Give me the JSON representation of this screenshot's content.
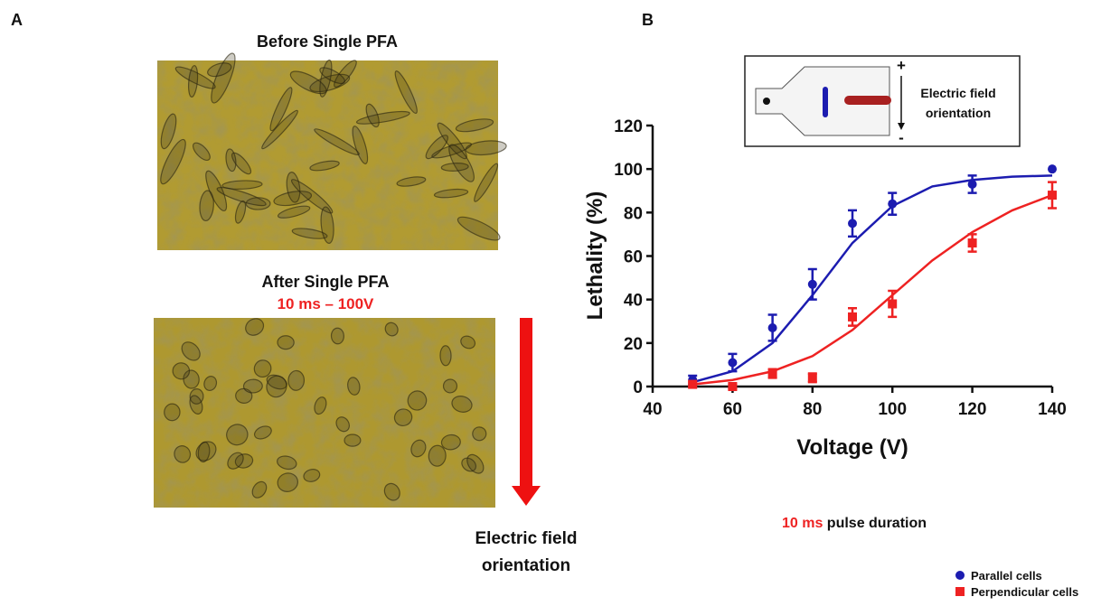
{
  "panel_a": {
    "label": "A",
    "before_title": "Before Single PFA",
    "after_title": "After Single PFA",
    "after_subtitle": "10 ms – 100V",
    "arrow_label": [
      "Electric field",
      "orientation"
    ]
  },
  "panel_b": {
    "label": "B",
    "inset": {
      "plus": "+",
      "minus": "-",
      "label": [
        "Electric field",
        "orientation"
      ]
    },
    "caption": {
      "highlight": "10 ms",
      "text": "pulse duration"
    }
  },
  "chart_data": {
    "type": "scatter",
    "xlabel": "Voltage (V)",
    "ylabel": "Lethality (%)",
    "xlim": [
      40,
      140
    ],
    "xticks": [
      40,
      60,
      80,
      100,
      120,
      140
    ],
    "ylim": [
      0,
      120
    ],
    "yticks": [
      0,
      20,
      40,
      60,
      80,
      100,
      120
    ],
    "legend": "bottom-right",
    "series": [
      {
        "name": "Parallel cells",
        "color": "#1c1cb0",
        "marker": "circle",
        "x": [
          50,
          60,
          70,
          80,
          90,
          100,
          120,
          140
        ],
        "values": [
          3,
          11,
          27,
          47,
          75,
          84,
          93,
          100
        ],
        "errors": [
          2,
          4,
          6,
          7,
          6,
          5,
          4,
          0
        ],
        "fit_x": [
          50,
          60,
          70,
          80,
          90,
          100,
          110,
          120,
          130,
          140
        ],
        "fit_values": [
          2,
          7,
          20,
          42,
          66,
          83,
          92,
          95,
          96.5,
          97
        ]
      },
      {
        "name": "Perpendicular cells",
        "color": "#ee2222",
        "marker": "square",
        "x": [
          50,
          60,
          70,
          80,
          90,
          100,
          120,
          140
        ],
        "values": [
          1,
          0,
          6,
          4,
          32,
          38,
          66,
          88
        ],
        "errors": [
          1,
          1,
          2,
          2,
          4,
          6,
          4,
          6
        ],
        "fit_x": [
          50,
          60,
          70,
          80,
          90,
          100,
          110,
          120,
          130,
          140
        ],
        "fit_values": [
          1,
          3,
          7,
          14,
          26,
          42,
          58,
          71,
          81,
          88
        ]
      }
    ]
  }
}
